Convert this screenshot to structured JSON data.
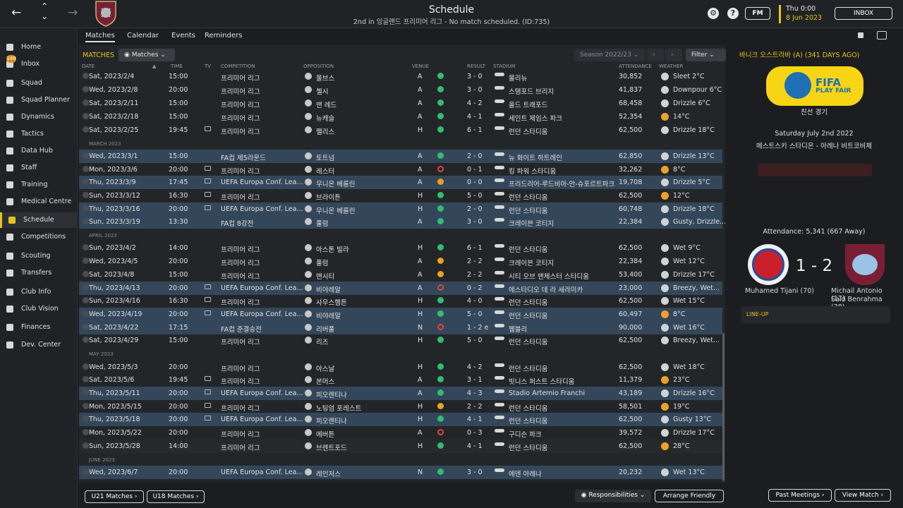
{
  "header": {
    "title": "Schedule",
    "subtitle": "2nd in 잉글랜드 프리미어 리그 - No match scheduled. (ID:735)",
    "time": "Thu 0:00",
    "date": "8 Jun 2023",
    "fm_label": "FM",
    "inbox_label": "INBOX",
    "back_icon": "←",
    "forward_icon": "→",
    "up_icon": "⌃",
    "down_icon": "⌄"
  },
  "sidebar": {
    "items": [
      {
        "label": "Home"
      },
      {
        "label": "Inbox",
        "badge": "149"
      },
      {
        "label": "Squad"
      },
      {
        "label": "Squad Planner"
      },
      {
        "label": "Dynamics"
      },
      {
        "label": "Tactics"
      },
      {
        "label": "Data Hub"
      },
      {
        "label": "Staff"
      },
      {
        "label": "Training"
      },
      {
        "label": "Medical Centre"
      },
      {
        "label": "Schedule"
      },
      {
        "label": "Competitions"
      },
      {
        "label": "Scouting"
      },
      {
        "label": "Transfers"
      },
      {
        "label": "Club Info"
      },
      {
        "label": "Club Vision"
      },
      {
        "label": "Finances"
      },
      {
        "label": "Dev. Center"
      }
    ]
  },
  "tabs": [
    "Matches",
    "Calendar",
    "Events",
    "Reminders"
  ],
  "toolbar": {
    "matches_label": "MATCHES",
    "matches_dd": "Matches",
    "season": "Season 2022/23",
    "filter": "Filter"
  },
  "columns": {
    "date": "DATE",
    "time": "TIME",
    "tv": "TV",
    "competition": "COMPETITION",
    "opposition": "OPPOSITION",
    "venue": "VENUE",
    "result": "RESULT",
    "stadium": "STADIUM",
    "attendance": "ATTENDANCE",
    "weather": "WEATHER"
  },
  "rows": [
    {
      "date": "Sat, 2023/2/4",
      "time": "15:00",
      "tv": false,
      "comp": "프리미어 리그",
      "opp": "울브스",
      "venue": "A",
      "res": "W",
      "score": "3 - 0",
      "stadium": "몰리뉴",
      "att": "30,852",
      "wx": "Sleet 2°C",
      "wxi": "cloud"
    },
    {
      "date": "Wed, 2023/2/8",
      "time": "20:00",
      "tv": false,
      "comp": "프리미어 리그",
      "opp": "첼시",
      "venue": "A",
      "res": "W",
      "score": "3 - 0",
      "stadium": "스탬포드 브리지",
      "att": "41,837",
      "wx": "Downpour 6°C",
      "wxi": "cloud"
    },
    {
      "date": "Sat, 2023/2/11",
      "time": "15:00",
      "tv": false,
      "comp": "프리미어 리그",
      "opp": "맨 레드",
      "venue": "A",
      "res": "W",
      "score": "4 - 2",
      "stadium": "올드 트래포드",
      "att": "68,458",
      "wx": "Drizzle 6°C",
      "wxi": "cloud"
    },
    {
      "date": "Sat, 2023/2/18",
      "time": "15:00",
      "tv": false,
      "comp": "프리미어 리그",
      "opp": "뉴캐슬",
      "venue": "A",
      "res": "W",
      "score": "4 - 1",
      "stadium": "세인트 제임스 파크",
      "att": "52,354",
      "wx": "14°C",
      "wxi": "sun"
    },
    {
      "date": "Sat, 2023/2/25",
      "time": "19:45",
      "tv": true,
      "comp": "프리미어 리그",
      "opp": "팰리스",
      "venue": "H",
      "res": "W",
      "score": "6 - 1",
      "stadium": "런던 스타디움",
      "att": "62,500",
      "wx": "Drizzle 18°C",
      "wxi": "cloud"
    },
    {
      "section": "MARCH 2023"
    },
    {
      "date": "Wed, 2023/3/1",
      "time": "15:00",
      "tv": false,
      "comp": "FA컵 제5라운드",
      "opp": "토트넘",
      "venue": "A",
      "res": "W",
      "score": "2 - 0",
      "stadium": "뉴 화이트 하트레인",
      "att": "62,850",
      "wx": "Drizzle 13°C",
      "wxi": "cloud",
      "hl": true
    },
    {
      "date": "Mon, 2023/3/6",
      "time": "20:00",
      "tv": true,
      "comp": "프리미어 리그",
      "opp": "레스터",
      "venue": "A",
      "res": "L",
      "score": "0 - 1",
      "stadium": "킹 파워 스타디움",
      "att": "32,262",
      "wx": "8°C",
      "wxi": "sun"
    },
    {
      "date": "Thu, 2023/3/9",
      "time": "17:45",
      "tv": true,
      "comp": "UEFA Europa Conf. Lea...",
      "opp": "우니온 베를린",
      "venue": "A",
      "res": "D",
      "score": "0 - 0",
      "stadium": "프리드리어-루드비아-안-슈포르트파크",
      "att": "19,708",
      "wx": "Drizzle 5°C",
      "wxi": "cloud",
      "hl": true
    },
    {
      "date": "Sun, 2023/3/12",
      "time": "16:30",
      "tv": true,
      "comp": "프리미어 리그",
      "opp": "브라이튼",
      "venue": "H",
      "res": "W",
      "score": "5 - 0",
      "stadium": "런던 스타디움",
      "att": "62,500",
      "wx": "12°C",
      "wxi": "sun"
    },
    {
      "date": "Thu, 2023/3/16",
      "time": "20:00",
      "tv": true,
      "comp": "UEFA Europa Conf. Lea...",
      "opp": "우니온 베를린",
      "venue": "H",
      "res": "W",
      "score": "2 - 0",
      "stadium": "런던 스타디움",
      "att": "60,748",
      "wx": "Drizzle 18°C",
      "wxi": "cloud",
      "hl": true
    },
    {
      "date": "Sun, 2023/3/19",
      "time": "13:30",
      "tv": false,
      "comp": "FA컵 8강전",
      "opp": "풀럼",
      "venue": "A",
      "res": "W",
      "score": "3 - 0",
      "stadium": "크레이븐 코티지",
      "att": "22,384",
      "wx": "Gusty, Drizzle...",
      "wxi": "cloud",
      "hl": true
    },
    {
      "section": "APRIL 2023"
    },
    {
      "date": "Sun, 2023/4/2",
      "time": "14:00",
      "tv": false,
      "comp": "프리미어 리그",
      "opp": "아스톤 빌라",
      "venue": "H",
      "res": "W",
      "score": "6 - 1",
      "stadium": "런던 스타디움",
      "att": "62,500",
      "wx": "Wet 9°C",
      "wxi": "cloud"
    },
    {
      "date": "Wed, 2023/4/5",
      "time": "20:00",
      "tv": false,
      "comp": "프리미어 리그",
      "opp": "풀럼",
      "venue": "A",
      "res": "D",
      "score": "2 - 2",
      "stadium": "크레이븐 코티지",
      "att": "22,384",
      "wx": "Wet 12°C",
      "wxi": "cloud"
    },
    {
      "date": "Sat, 2023/4/8",
      "time": "15:00",
      "tv": false,
      "comp": "프리미어 리그",
      "opp": "맨시티",
      "venue": "A",
      "res": "D",
      "score": "2 - 2",
      "stadium": "시티 오브 맨체스터 스타디움",
      "att": "53,400",
      "wx": "Drizzle 17°C",
      "wxi": "cloud"
    },
    {
      "date": "Thu, 2023/4/13",
      "time": "20:00",
      "tv": true,
      "comp": "UEFA Europa Conf. Lea...",
      "opp": "비야레알",
      "venue": "A",
      "res": "L",
      "score": "0 - 2",
      "stadium": "에스타디오 데 라 세라미카",
      "att": "23,000",
      "wx": "Breezy, Wet...",
      "wxi": "cloud",
      "hl": true
    },
    {
      "date": "Sun, 2023/4/16",
      "time": "16:30",
      "tv": true,
      "comp": "프리미어 리그",
      "opp": "사우스햄튼",
      "venue": "H",
      "res": "W",
      "score": "4 - 0",
      "stadium": "런던 스타디움",
      "att": "62,500",
      "wx": "Wet 15°C",
      "wxi": "cloud"
    },
    {
      "date": "Wed, 2023/4/19",
      "time": "20:00",
      "tv": true,
      "comp": "UEFA Europa Conf. Lea...",
      "opp": "비야레알",
      "venue": "H",
      "res": "W",
      "score": "5 - 0",
      "stadium": "런던 스타디움",
      "att": "60,497",
      "wx": "8°C",
      "wxi": "sun",
      "hl": true
    },
    {
      "date": "Sat, 2023/4/22",
      "time": "17:15",
      "tv": false,
      "comp": "FA컵 준결승전",
      "opp": "리버풀",
      "venue": "N",
      "res": "L",
      "score": "1 - 2 e",
      "stadium": "웸블리",
      "att": "90,000",
      "wx": "Wet 16°C",
      "wxi": "cloud",
      "hl": true
    },
    {
      "date": "Sat, 2023/4/29",
      "time": "15:00",
      "tv": false,
      "comp": "프리미어 리그",
      "opp": "리즈",
      "venue": "H",
      "res": "W",
      "score": "5 - 0",
      "stadium": "런던 스타디움",
      "att": "62,500",
      "wx": "Breezy, Wet...",
      "wxi": "cloud"
    },
    {
      "section": "MAY 2023"
    },
    {
      "date": "Wed, 2023/5/3",
      "time": "20:00",
      "tv": false,
      "comp": "프리미어 리그",
      "opp": "아스날",
      "venue": "H",
      "res": "W",
      "score": "4 - 2",
      "stadium": "런던 스타디움",
      "att": "62,500",
      "wx": "Wet 18°C",
      "wxi": "cloud"
    },
    {
      "date": "Sat, 2023/5/6",
      "time": "19:45",
      "tv": true,
      "comp": "프리미어 리그",
      "opp": "본머스",
      "venue": "A",
      "res": "W",
      "score": "3 - 1",
      "stadium": "빗니스 퍼스트 스타디움",
      "att": "11,379",
      "wx": "23°C",
      "wxi": "sun"
    },
    {
      "date": "Thu, 2023/5/11",
      "time": "20:00",
      "tv": true,
      "comp": "UEFA Europa Conf. Lea...",
      "opp": "피오렌티나",
      "venue": "A",
      "res": "W",
      "score": "4 - 3",
      "stadium": "Stadio Artemio Franchi",
      "att": "43,189",
      "wx": "Drizzle 16°C",
      "wxi": "cloud",
      "hl": true
    },
    {
      "date": "Mon, 2023/5/15",
      "time": "20:00",
      "tv": true,
      "comp": "프리미어 리그",
      "opp": "노팅엄 포레스트",
      "venue": "H",
      "res": "D",
      "score": "2 - 2",
      "stadium": "런던 스타디움",
      "att": "58,501",
      "wx": "19°C",
      "wxi": "sun"
    },
    {
      "date": "Thu, 2023/5/18",
      "time": "20:00",
      "tv": true,
      "comp": "UEFA Europa Conf. Lea...",
      "opp": "피오렌티나",
      "venue": "H",
      "res": "W",
      "score": "4 - 1",
      "stadium": "런던 스타디움",
      "att": "62,500",
      "wx": "Gusty 13°C",
      "wxi": "cloud",
      "hl": true
    },
    {
      "date": "Mon, 2023/5/22",
      "time": "20:00",
      "tv": false,
      "comp": "프리미어 리그",
      "opp": "에버튼",
      "venue": "A",
      "res": "L",
      "score": "0 - 3",
      "stadium": "구디슨 파크",
      "att": "39,572",
      "wx": "Drizzle 17°C",
      "wxi": "cloud"
    },
    {
      "date": "Sun, 2023/5/28",
      "time": "14:00",
      "tv": false,
      "comp": "프리미어 리그",
      "opp": "브렌트포드",
      "venue": "H",
      "res": "W",
      "score": "4 - 1",
      "stadium": "런던 스타디움",
      "att": "62,500",
      "wx": "28°C",
      "wxi": "sun",
      "alt": true
    },
    {
      "section": "JUNE 2023"
    },
    {
      "date": "Wed, 2023/6/7",
      "time": "20:00",
      "tv": false,
      "comp": "UEFA Europa Conf. Lea...",
      "opp": "레인저스",
      "venue": "N",
      "res": "W",
      "score": "3 - 0",
      "stadium": "에덴 아레나",
      "att": "20,232",
      "wx": "Wet 13°C",
      "wxi": "cloud",
      "hl": true
    }
  ],
  "bottom": {
    "u21": "U21 Matches",
    "u18": "U18 Matches",
    "resp": "Responsibilities",
    "friendly": "Arrange Friendly",
    "past": "Past Meetings",
    "view": "View Match"
  },
  "right": {
    "heading": "바니크 오스트라바 (A) (341 DAYS AGO)",
    "fifa1": "FIFA",
    "fifa2": "PLAY FAIR",
    "match_type": "친선 경기",
    "date": "Saturday July 2nd 2022",
    "stadium": "메스트스키 스타디온 - 아레나 비트코비체",
    "attendance": "Attendance: 5,341 (667 Away)",
    "score": "1 - 2",
    "home_scorers": "Muhamed Tijani (70)",
    "away_scorers1": "Michail Antonio (17)",
    "away_scorers2": "Saïd Benrahma (38)",
    "lineup": "LINE-UP"
  }
}
